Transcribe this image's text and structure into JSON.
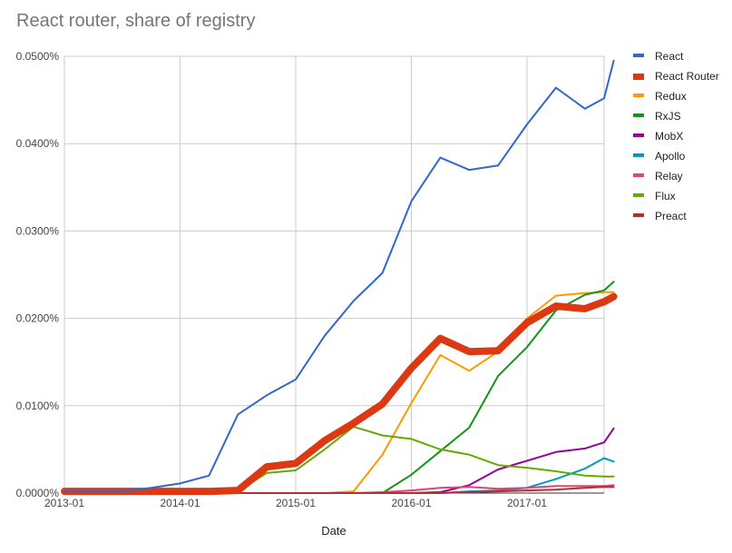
{
  "chart_data": {
    "type": "line",
    "title": "React router, share of registry",
    "xlabel": "Date",
    "ylabel": "",
    "x_ticks": [
      "2013-01",
      "2014-01",
      "2015-01",
      "2016-01",
      "2017-01"
    ],
    "y_ticks": [
      "0.0000%",
      "0.0100%",
      "0.0200%",
      "0.0300%",
      "0.0400%",
      "0.0500%"
    ],
    "ylim": [
      0,
      0.05
    ],
    "xlim": [
      "2013-01",
      "2017-09"
    ],
    "grid": true,
    "legend_position": "right",
    "x": [
      "2013-01",
      "2013-04",
      "2013-07",
      "2013-10",
      "2014-01",
      "2014-04",
      "2014-07",
      "2014-10",
      "2015-01",
      "2015-04",
      "2015-07",
      "2015-10",
      "2016-01",
      "2016-04",
      "2016-07",
      "2016-10",
      "2017-01",
      "2017-04",
      "2017-07",
      "2017-09",
      "2017-10"
    ],
    "series": [
      {
        "name": "React",
        "color": "#3366cc",
        "width": 2,
        "values": [
          0.0002,
          0.0002,
          0.0002,
          0.0006,
          0.0011,
          0.002,
          0.009,
          0.0112,
          0.013,
          0.018,
          0.022,
          0.0252,
          0.0334,
          0.0384,
          0.037,
          0.0375,
          0.0422,
          0.0464,
          0.044,
          0.0452,
          0.0495
        ]
      },
      {
        "name": "React Router",
        "color": "#dc3912",
        "width": 8,
        "values": [
          0.0002,
          0.0002,
          0.0002,
          0.0002,
          0.0002,
          0.0002,
          0.0003,
          0.003,
          0.0034,
          0.006,
          0.008,
          0.0102,
          0.0143,
          0.0177,
          0.0162,
          0.0163,
          0.0195,
          0.0214,
          0.0211,
          0.0219,
          0.0225
        ]
      },
      {
        "name": "Redux",
        "color": "#ff9900",
        "width": 2,
        "values": [
          0,
          0,
          0,
          0,
          0,
          0,
          0,
          0,
          0,
          0,
          0.0002,
          0.0044,
          0.0103,
          0.0158,
          0.014,
          0.0162,
          0.02,
          0.0226,
          0.0229,
          0.023,
          0.023
        ]
      },
      {
        "name": "RxJS",
        "color": "#109618",
        "width": 2,
        "values": [
          0,
          0,
          0,
          0,
          0,
          0,
          0,
          0,
          0,
          0,
          0,
          0,
          0.0021,
          0.0048,
          0.0075,
          0.0134,
          0.0167,
          0.0209,
          0.0227,
          0.0232,
          0.0242
        ]
      },
      {
        "name": "MobX",
        "color": "#990099",
        "width": 2,
        "values": [
          0,
          0,
          0,
          0,
          0,
          0,
          0,
          0,
          0,
          0,
          0,
          0,
          0,
          0.0001,
          0.0009,
          0.0027,
          0.0037,
          0.0047,
          0.0051,
          0.0058,
          0.0074
        ]
      },
      {
        "name": "Apollo",
        "color": "#0099c6",
        "width": 2,
        "values": [
          0,
          0,
          0,
          0,
          0,
          0,
          0,
          0,
          0,
          0,
          0,
          0,
          0,
          0,
          0.0002,
          0.0003,
          0.0006,
          0.0016,
          0.0028,
          0.004,
          0.0036
        ]
      },
      {
        "name": "Relay",
        "color": "#dd4477",
        "width": 2,
        "values": [
          0,
          0,
          0,
          0,
          0,
          0,
          0,
          0,
          0,
          0,
          0,
          0.0001,
          0.0003,
          0.0006,
          0.0007,
          0.0005,
          0.0006,
          0.0008,
          0.0008,
          0.0008,
          0.0009
        ]
      },
      {
        "name": "Flux",
        "color": "#66aa00",
        "width": 2,
        "values": [
          0.0002,
          0.0002,
          0.0002,
          0.0002,
          0.0002,
          0.0002,
          0.0002,
          0.0023,
          0.0026,
          0.005,
          0.0076,
          0.0066,
          0.0062,
          0.005,
          0.0044,
          0.0032,
          0.0029,
          0.0025,
          0.002,
          0.0019,
          0.0019
        ]
      },
      {
        "name": "Preact",
        "color": "#b82e2e",
        "width": 2,
        "values": [
          0,
          0,
          0,
          0,
          0,
          0,
          0,
          0,
          0,
          0,
          0,
          0,
          0,
          0,
          0.0001,
          0.0002,
          0.0003,
          0.0004,
          0.0006,
          0.0007,
          0.0007
        ]
      }
    ]
  }
}
